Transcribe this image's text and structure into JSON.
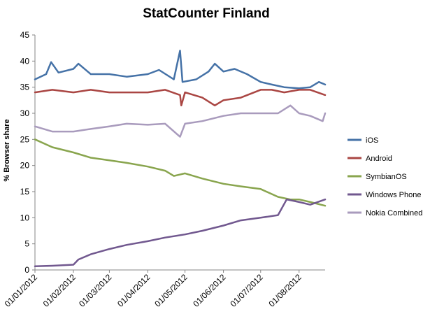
{
  "chart_data": {
    "type": "line",
    "title": "StatCounter Finland",
    "xlabel": "",
    "ylabel": "% Browser share",
    "ylim": [
      0,
      45
    ],
    "yticks": [
      0,
      5,
      10,
      15,
      20,
      25,
      30,
      35,
      40,
      45
    ],
    "xlim": [
      "2012-01-01",
      "2012-08-22"
    ],
    "x_tick_labels": [
      "01/01/2012",
      "01/02/2012",
      "01/03/2012",
      "01/04/2012",
      "01/05/2012",
      "01/06/2012",
      "01/07/2012",
      "01/08/2012"
    ],
    "x_tick_dates": [
      "2012-01-01",
      "2012-02-01",
      "2012-03-01",
      "2012-04-01",
      "2012-05-01",
      "2012-06-01",
      "2012-07-01",
      "2012-08-01"
    ],
    "grid": false,
    "legend_position": "right",
    "series": [
      {
        "name": "iOS",
        "color": "#4572A7",
        "points": [
          [
            "2012-01-01",
            36.5
          ],
          [
            "2012-01-10",
            37.5
          ],
          [
            "2012-01-14",
            39.8
          ],
          [
            "2012-01-20",
            37.8
          ],
          [
            "2012-02-01",
            38.5
          ],
          [
            "2012-02-05",
            39.5
          ],
          [
            "2012-02-15",
            37.5
          ],
          [
            "2012-03-01",
            37.5
          ],
          [
            "2012-03-15",
            37.0
          ],
          [
            "2012-04-01",
            37.5
          ],
          [
            "2012-04-10",
            38.3
          ],
          [
            "2012-04-22",
            36.5
          ],
          [
            "2012-04-27",
            42.0
          ],
          [
            "2012-04-29",
            36.0
          ],
          [
            "2012-05-10",
            36.5
          ],
          [
            "2012-05-20",
            38.0
          ],
          [
            "2012-05-25",
            39.5
          ],
          [
            "2012-06-01",
            38.0
          ],
          [
            "2012-06-10",
            38.5
          ],
          [
            "2012-06-20",
            37.5
          ],
          [
            "2012-07-01",
            36.0
          ],
          [
            "2012-07-10",
            35.5
          ],
          [
            "2012-07-20",
            35.0
          ],
          [
            "2012-08-01",
            34.8
          ],
          [
            "2012-08-10",
            35.0
          ],
          [
            "2012-08-17",
            36.0
          ],
          [
            "2012-08-22",
            35.5
          ]
        ]
      },
      {
        "name": "Android",
        "color": "#AA4643",
        "points": [
          [
            "2012-01-01",
            34.0
          ],
          [
            "2012-01-15",
            34.5
          ],
          [
            "2012-02-01",
            34.0
          ],
          [
            "2012-02-15",
            34.5
          ],
          [
            "2012-03-01",
            34.0
          ],
          [
            "2012-03-15",
            34.0
          ],
          [
            "2012-04-01",
            34.0
          ],
          [
            "2012-04-15",
            34.5
          ],
          [
            "2012-04-27",
            33.5
          ],
          [
            "2012-04-28",
            31.5
          ],
          [
            "2012-05-01",
            34.0
          ],
          [
            "2012-05-15",
            33.0
          ],
          [
            "2012-05-25",
            31.5
          ],
          [
            "2012-06-01",
            32.5
          ],
          [
            "2012-06-15",
            33.0
          ],
          [
            "2012-07-01",
            34.5
          ],
          [
            "2012-07-10",
            34.5
          ],
          [
            "2012-07-20",
            34.0
          ],
          [
            "2012-08-01",
            34.5
          ],
          [
            "2012-08-10",
            34.5
          ],
          [
            "2012-08-22",
            33.5
          ]
        ]
      },
      {
        "name": "SymbianOS",
        "color": "#89A54E",
        "points": [
          [
            "2012-01-01",
            25.0
          ],
          [
            "2012-01-15",
            23.5
          ],
          [
            "2012-02-01",
            22.5
          ],
          [
            "2012-02-15",
            21.5
          ],
          [
            "2012-03-01",
            21.0
          ],
          [
            "2012-03-15",
            20.5
          ],
          [
            "2012-04-01",
            19.8
          ],
          [
            "2012-04-15",
            19.0
          ],
          [
            "2012-04-22",
            18.0
          ],
          [
            "2012-05-01",
            18.5
          ],
          [
            "2012-05-15",
            17.5
          ],
          [
            "2012-06-01",
            16.5
          ],
          [
            "2012-06-15",
            16.0
          ],
          [
            "2012-07-01",
            15.5
          ],
          [
            "2012-07-15",
            14.0
          ],
          [
            "2012-07-25",
            13.5
          ],
          [
            "2012-08-01",
            13.5
          ],
          [
            "2012-08-10",
            13.0
          ],
          [
            "2012-08-22",
            12.3
          ]
        ]
      },
      {
        "name": "Windows Phone",
        "color": "#71588F",
        "points": [
          [
            "2012-01-01",
            0.7
          ],
          [
            "2012-01-15",
            0.8
          ],
          [
            "2012-02-01",
            1.0
          ],
          [
            "2012-02-05",
            2.0
          ],
          [
            "2012-02-15",
            3.0
          ],
          [
            "2012-03-01",
            4.0
          ],
          [
            "2012-03-15",
            4.8
          ],
          [
            "2012-04-01",
            5.5
          ],
          [
            "2012-04-15",
            6.2
          ],
          [
            "2012-05-01",
            6.8
          ],
          [
            "2012-05-15",
            7.5
          ],
          [
            "2012-06-01",
            8.5
          ],
          [
            "2012-06-15",
            9.5
          ],
          [
            "2012-07-01",
            10.0
          ],
          [
            "2012-07-15",
            10.5
          ],
          [
            "2012-07-22",
            13.5
          ],
          [
            "2012-08-01",
            13.0
          ],
          [
            "2012-08-10",
            12.5
          ],
          [
            "2012-08-22",
            13.5
          ]
        ]
      },
      {
        "name": "Nokia Combined",
        "color": "#A99BBD",
        "points": [
          [
            "2012-01-01",
            27.5
          ],
          [
            "2012-01-15",
            26.5
          ],
          [
            "2012-02-01",
            26.5
          ],
          [
            "2012-02-15",
            27.0
          ],
          [
            "2012-03-01",
            27.5
          ],
          [
            "2012-03-15",
            28.0
          ],
          [
            "2012-04-01",
            27.8
          ],
          [
            "2012-04-15",
            28.0
          ],
          [
            "2012-04-27",
            25.5
          ],
          [
            "2012-05-01",
            28.0
          ],
          [
            "2012-05-15",
            28.5
          ],
          [
            "2012-06-01",
            29.5
          ],
          [
            "2012-06-15",
            30.0
          ],
          [
            "2012-07-01",
            30.0
          ],
          [
            "2012-07-15",
            30.0
          ],
          [
            "2012-07-25",
            31.5
          ],
          [
            "2012-08-01",
            30.0
          ],
          [
            "2012-08-10",
            29.5
          ],
          [
            "2012-08-20",
            28.5
          ],
          [
            "2012-08-22",
            30.0
          ]
        ]
      }
    ]
  }
}
